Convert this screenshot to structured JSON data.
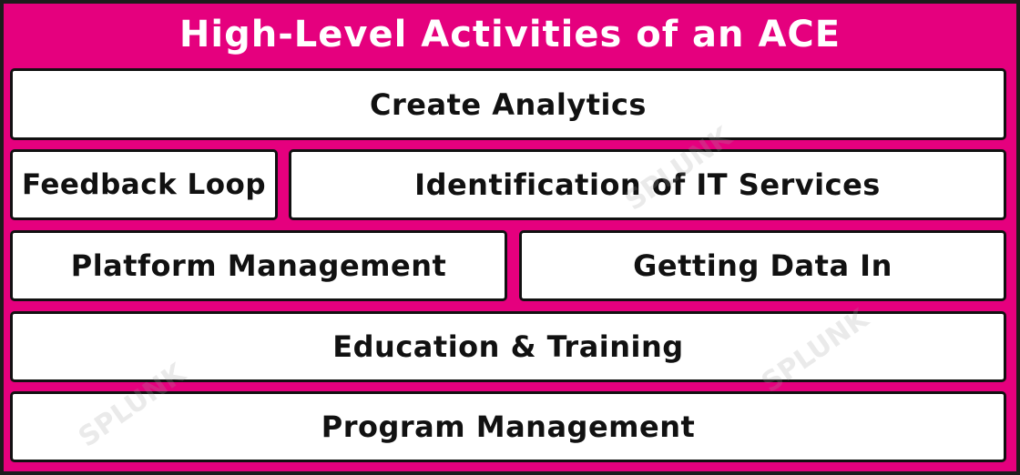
{
  "title": "High-Level Activities of an ACE",
  "watermark": "SPLUNK",
  "boxes": {
    "create_analytics": "Create Analytics",
    "feedback_loop": "Feedback Loop",
    "identification": "Identification of IT Services",
    "platform_management": "Platform Management",
    "getting_data_in": "Getting Data In",
    "education_training": "Education & Training",
    "program_management": "Program Management"
  },
  "colors": {
    "background": "#e5007e",
    "box_fill": "#ffffff",
    "border": "#111111",
    "title_text": "#ffffff"
  }
}
